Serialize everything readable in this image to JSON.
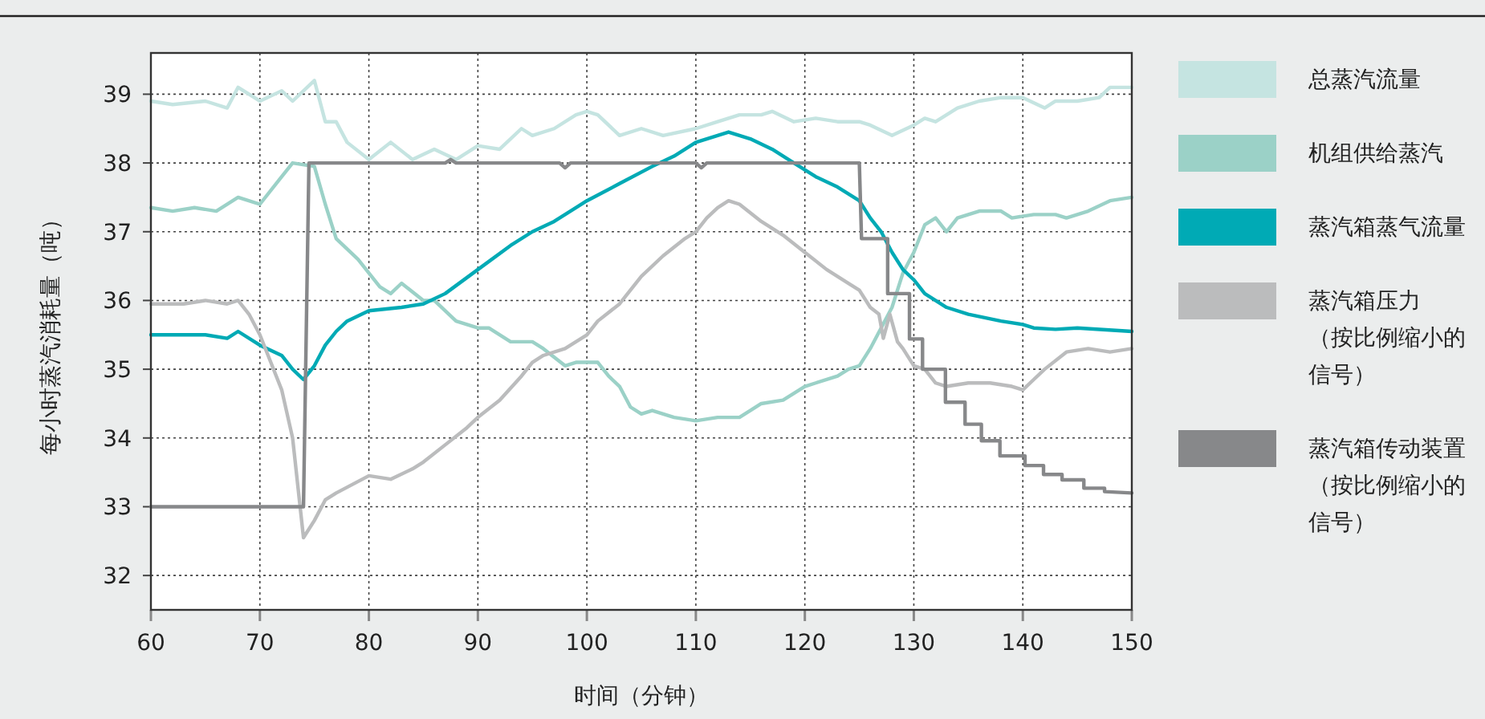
{
  "chart_data": {
    "type": "line",
    "xlabel": "时间（分钟）",
    "ylabel": "每小时蒸汽消耗量（吨）",
    "xlim": [
      60,
      150
    ],
    "ylim": [
      31.5,
      39.6
    ],
    "xticks": [
      60,
      70,
      80,
      90,
      100,
      110,
      120,
      130,
      140,
      150
    ],
    "yticks": [
      32,
      33,
      34,
      35,
      36,
      37,
      38,
      39
    ],
    "grid": true,
    "legend": "right",
    "line_style": "solid",
    "marker": "none",
    "series": [
      {
        "name": "总蒸汽流量",
        "color": "#c5e4e1",
        "x": [
          60,
          62,
          65,
          67,
          68,
          70,
          72,
          73,
          75,
          76,
          77,
          78,
          80,
          82,
          84,
          86,
          88,
          90,
          92,
          94,
          95,
          97,
          99,
          100,
          101,
          103,
          105,
          107,
          110,
          112,
          114,
          116,
          117,
          119,
          121,
          123,
          125,
          126,
          128,
          130,
          131,
          132,
          134,
          136,
          138,
          140,
          142,
          143,
          145,
          147,
          148,
          150
        ],
        "values": [
          38.9,
          38.85,
          38.9,
          38.8,
          39.1,
          38.9,
          39.05,
          38.9,
          39.2,
          38.6,
          38.6,
          38.3,
          38.05,
          38.3,
          38.05,
          38.2,
          38.05,
          38.25,
          38.2,
          38.5,
          38.4,
          38.5,
          38.7,
          38.75,
          38.7,
          38.4,
          38.5,
          38.4,
          38.5,
          38.6,
          38.7,
          38.7,
          38.75,
          38.6,
          38.65,
          38.6,
          38.6,
          38.55,
          38.4,
          38.55,
          38.65,
          38.6,
          38.8,
          38.9,
          38.95,
          38.95,
          38.8,
          38.9,
          38.9,
          38.95,
          39.1,
          39.1
        ]
      },
      {
        "name": "机组供给蒸汽",
        "color": "#9bd1c7",
        "x": [
          60,
          62,
          64,
          66,
          68,
          70,
          72,
          73,
          75,
          76,
          77,
          79,
          81,
          82,
          83,
          85,
          86,
          88,
          90,
          91,
          93,
          95,
          96,
          98,
          99,
          101,
          102,
          103,
          104,
          105,
          106,
          108,
          110,
          112,
          114,
          116,
          118,
          120,
          121,
          123,
          124,
          125,
          126,
          128,
          129,
          130,
          131,
          132,
          133,
          134,
          136,
          138,
          139,
          141,
          143,
          144,
          146,
          148,
          150
        ],
        "values": [
          37.35,
          37.3,
          37.35,
          37.3,
          37.5,
          37.4,
          37.8,
          38.0,
          37.95,
          37.4,
          36.9,
          36.6,
          36.2,
          36.1,
          36.25,
          36.0,
          36.0,
          35.7,
          35.6,
          35.6,
          35.4,
          35.4,
          35.3,
          35.05,
          35.1,
          35.1,
          34.9,
          34.75,
          34.45,
          34.35,
          34.4,
          34.3,
          34.25,
          34.3,
          34.3,
          34.5,
          34.55,
          34.75,
          34.8,
          34.9,
          35.0,
          35.05,
          35.3,
          35.9,
          36.4,
          36.7,
          37.1,
          37.2,
          37.0,
          37.2,
          37.3,
          37.3,
          37.2,
          37.25,
          37.25,
          37.2,
          37.3,
          37.45,
          37.5
        ]
      },
      {
        "name": "蒸汽箱蒸气流量",
        "color": "#00aab5",
        "x": [
          60,
          65,
          67,
          68,
          70,
          72,
          73,
          74,
          75,
          76,
          77,
          78,
          80,
          83,
          85,
          87,
          90,
          93,
          95,
          97,
          100,
          103,
          106,
          108,
          110,
          112,
          113,
          115,
          117,
          119,
          121,
          123,
          125,
          126,
          127,
          128,
          129,
          130,
          131,
          133,
          135,
          138,
          140,
          141,
          143,
          145,
          150
        ],
        "values": [
          35.5,
          35.5,
          35.45,
          35.55,
          35.35,
          35.2,
          35.0,
          34.85,
          35.05,
          35.35,
          35.55,
          35.7,
          35.85,
          35.9,
          35.95,
          36.1,
          36.45,
          36.8,
          37.0,
          37.15,
          37.45,
          37.7,
          37.95,
          38.1,
          38.3,
          38.4,
          38.45,
          38.35,
          38.2,
          38.0,
          37.8,
          37.65,
          37.45,
          37.2,
          37.0,
          36.7,
          36.45,
          36.3,
          36.1,
          35.9,
          35.8,
          35.7,
          35.65,
          35.6,
          35.58,
          35.6,
          35.55
        ]
      },
      {
        "name": "蒸汽箱压力（按比例缩小的信号）",
        "color": "#bbbcbd",
        "x": [
          60,
          63,
          65,
          67,
          68,
          69,
          70,
          71,
          72,
          73,
          74,
          75,
          76,
          77,
          80,
          82,
          84,
          85,
          87,
          89,
          90,
          92,
          94,
          95,
          96,
          98,
          100,
          101,
          103,
          105,
          107,
          109,
          110,
          111,
          112,
          113,
          114,
          116,
          118,
          120,
          122,
          124,
          125,
          126,
          126.8,
          127.2,
          127.8,
          128.5,
          129,
          130,
          131,
          132,
          133,
          135,
          137,
          139,
          140,
          141,
          142,
          144,
          146,
          148,
          150
        ],
        "values": [
          35.95,
          35.95,
          36.0,
          35.95,
          36.0,
          35.8,
          35.5,
          35.1,
          34.7,
          34.0,
          32.55,
          32.8,
          33.1,
          33.2,
          33.45,
          33.4,
          33.55,
          33.65,
          33.9,
          34.15,
          34.3,
          34.55,
          34.9,
          35.1,
          35.2,
          35.3,
          35.5,
          35.7,
          35.95,
          36.35,
          36.65,
          36.9,
          37.0,
          37.2,
          37.35,
          37.45,
          37.4,
          37.15,
          36.95,
          36.7,
          36.45,
          36.25,
          36.15,
          35.9,
          35.8,
          35.45,
          35.8,
          35.4,
          35.3,
          35.05,
          35.0,
          34.8,
          34.75,
          34.8,
          34.8,
          34.75,
          34.7,
          34.85,
          35.0,
          35.25,
          35.3,
          35.25,
          35.3
        ]
      },
      {
        "name": "蒸汽箱传动装置（按比例缩小的信号）",
        "color": "#87888a",
        "x": [
          60,
          74,
          74.5,
          87,
          87.5,
          88,
          97.5,
          98,
          98.5,
          110,
          110.5,
          111,
          125,
          125.2,
          127.6,
          127.6,
          129.6,
          129.6,
          130.8,
          130.8,
          132.9,
          132.9,
          134.7,
          134.7,
          136.2,
          136.2,
          137.9,
          137.9,
          140.2,
          140.2,
          141.9,
          141.9,
          143.6,
          143.6,
          145.6,
          145.6,
          147.5,
          147.5,
          150
        ],
        "values": [
          33.0,
          33.0,
          38.0,
          38.0,
          38.05,
          38.0,
          38.0,
          37.93,
          38.0,
          38.0,
          37.93,
          38.0,
          38.0,
          36.9,
          36.9,
          36.1,
          36.1,
          35.44,
          35.44,
          35.0,
          35.0,
          34.52,
          34.52,
          34.2,
          34.2,
          33.96,
          33.96,
          33.74,
          33.74,
          33.6,
          33.6,
          33.47,
          33.47,
          33.39,
          33.39,
          33.27,
          33.27,
          33.22,
          33.2
        ]
      }
    ]
  }
}
